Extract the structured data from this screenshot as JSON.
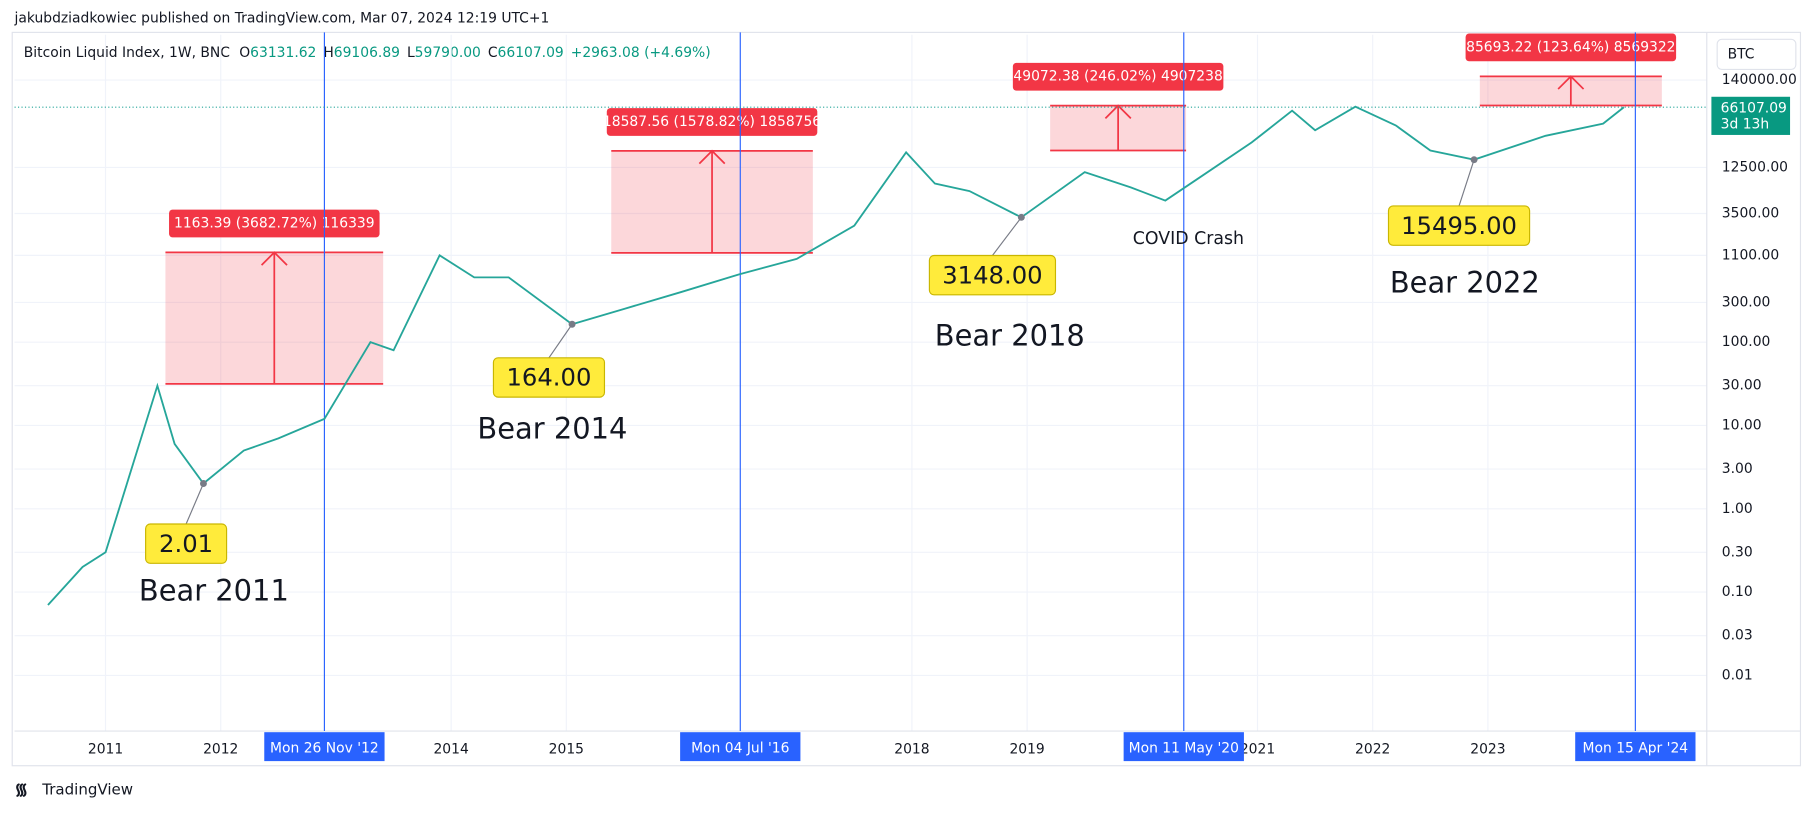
{
  "header": {
    "published": "jakubdziadkowiec published on TradingView.com, Mar 07, 2024 12:19 UTC+1",
    "symbol": "Bitcoin Liquid Index, 1W, BNC",
    "ohlc": [
      {
        "key": "O",
        "value": "63131.62"
      },
      {
        "key": "H",
        "value": "69106.89"
      },
      {
        "key": "L",
        "value": "59790.00"
      },
      {
        "key": "C",
        "value": "66107.09"
      }
    ],
    "change": "+2963.08 (+4.69%)",
    "currency": "BTC",
    "countdown": "3d 13h"
  },
  "footer": {
    "brand": "TradingView"
  },
  "chart_data": {
    "type": "line",
    "log_scale": true,
    "grid": true,
    "series": [
      {
        "name": "Bitcoin Liquid Index",
        "color": "#26a69a",
        "x": [
          2010.5,
          2010.8,
          2011.0,
          2011.45,
          2011.6,
          2011.85,
          2012.2,
          2012.5,
          2012.9,
          2013.3,
          2013.5,
          2013.9,
          2014.2,
          2014.5,
          2015.05,
          2015.5,
          2016.0,
          2016.5,
          2017.0,
          2017.5,
          2017.95,
          2018.2,
          2018.5,
          2018.95,
          2019.5,
          2019.9,
          2020.2,
          2020.5,
          2020.95,
          2021.3,
          2021.5,
          2021.85,
          2022.2,
          2022.5,
          2022.88,
          2023.5,
          2024.0,
          2024.18
        ],
        "values": [
          0.07,
          0.2,
          0.3,
          30,
          6,
          2.01,
          5,
          7,
          12,
          100,
          80,
          1100,
          600,
          600,
          164,
          250,
          400,
          650,
          1000,
          2500,
          19000,
          8000,
          6500,
          3148,
          11000,
          7200,
          5000,
          9500,
          25000,
          60000,
          35000,
          67000,
          40000,
          20000,
          15495,
          30000,
          42000,
          66107.09
        ],
        "value_labels": [
          null,
          null,
          null,
          null,
          null,
          null,
          null,
          null,
          null,
          null,
          null,
          null,
          null,
          null,
          null,
          null,
          null,
          null,
          null,
          null,
          null,
          null,
          null,
          null,
          null,
          null,
          null,
          null,
          null,
          null,
          null,
          null,
          null,
          null,
          null,
          null,
          null,
          "66107.09"
        ]
      }
    ],
    "xlim": [
      2010.21,
      2024.9
    ],
    "xticks": [
      2011,
      2012,
      2014,
      2015,
      2018,
      2019,
      2021,
      2022,
      2023
    ],
    "ylim": [
      0.00215,
      490000
    ],
    "yticks": [
      {
        "value": 140000,
        "label": "140000.00"
      },
      {
        "value": 12500,
        "label": "12500.00"
      },
      {
        "value": 3500,
        "label": "3500.00"
      },
      {
        "value": 1100,
        "label": "1100.00"
      },
      {
        "value": 300,
        "label": "300.00"
      },
      {
        "value": 100,
        "label": "100.00"
      },
      {
        "value": 30,
        "label": "30.00"
      },
      {
        "value": 10,
        "label": "10.00"
      },
      {
        "value": 3,
        "label": "3.00"
      },
      {
        "value": 1,
        "label": "1.00"
      },
      {
        "value": 0.3,
        "label": "0.30"
      },
      {
        "value": 0.1,
        "label": "0.10"
      },
      {
        "value": 0.03,
        "label": "0.03"
      },
      {
        "value": 0.01,
        "label": "0.01"
      }
    ],
    "vlines": [
      {
        "x": 2012.9,
        "label": "Mon 26 Nov '12"
      },
      {
        "x": 2016.51,
        "label": "Mon 04 Jul '16"
      },
      {
        "x": 2020.36,
        "label": "Mon 11 May '20"
      },
      {
        "x": 2024.28,
        "label": "Mon 15 Apr '24"
      }
    ],
    "measures": [
      {
        "x": [
          2011.52,
          2013.41
        ],
        "y": [
          31.59,
          1194.98
        ],
        "label": "1163.39 (3682.72%) 116339"
      },
      {
        "x": [
          2015.39,
          2017.14
        ],
        "y": [
          1177.3,
          19764.9
        ],
        "label": "18587.56 (1578.82%) 1858756"
      },
      {
        "x": [
          2019.2,
          2020.38
        ],
        "y": [
          19946,
          69018
        ],
        "label": "49072.38 (246.02%) 4907238"
      },
      {
        "x": [
          2022.93,
          2024.51
        ],
        "y": [
          69310,
          155003
        ],
        "label": "85693.22 (123.64%) 8569322"
      }
    ],
    "callouts": [
      {
        "x": 2011.85,
        "value": 2.01,
        "caption": "Bear 2011"
      },
      {
        "x": 2015.05,
        "value": {
          "value": 164,
          "label": "164.00"
        },
        "caption": "Bear 2014"
      },
      {
        "x": 2018.95,
        "value": {
          "value": 3148,
          "label": "3148.00"
        },
        "caption": "Bear 2018"
      },
      {
        "x": 2022.88,
        "value": {
          "value": 15495,
          "label": "15495.00"
        },
        "caption": "Bear 2022"
      }
    ],
    "annotations": [
      {
        "x": 2020.36,
        "y": 3500,
        "text": "COVID Crash"
      }
    ]
  }
}
